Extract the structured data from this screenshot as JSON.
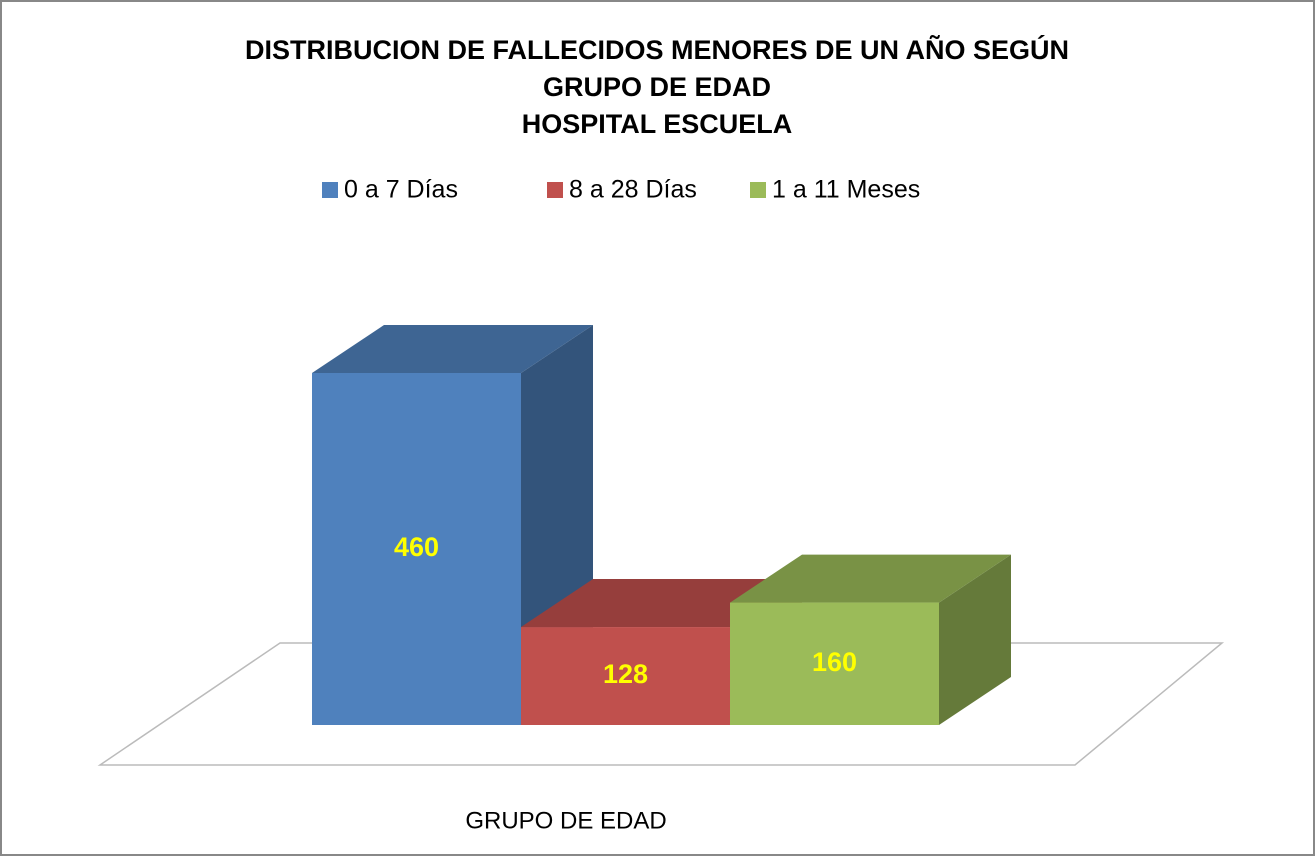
{
  "chart_data": {
    "type": "bar3d",
    "title": [
      "DISTRIBUCION DE FALLECIDOS MENORES DE UN AÑO SEGÚN",
      "GRUPO DE EDAD",
      "HOSPITAL ESCUELA"
    ],
    "categories": [
      "GRUPO DE EDAD"
    ],
    "series": [
      {
        "name": "0 a 7 Días",
        "color": "#4f81bd",
        "values": [
          460
        ]
      },
      {
        "name": "8 a 28 Días",
        "color": "#c0504d",
        "values": [
          128
        ]
      },
      {
        "name": "1 a 11 Meses",
        "color": "#9bbb59",
        "values": [
          160
        ]
      }
    ],
    "legend": "top",
    "value_label_color": "#ffff00"
  }
}
